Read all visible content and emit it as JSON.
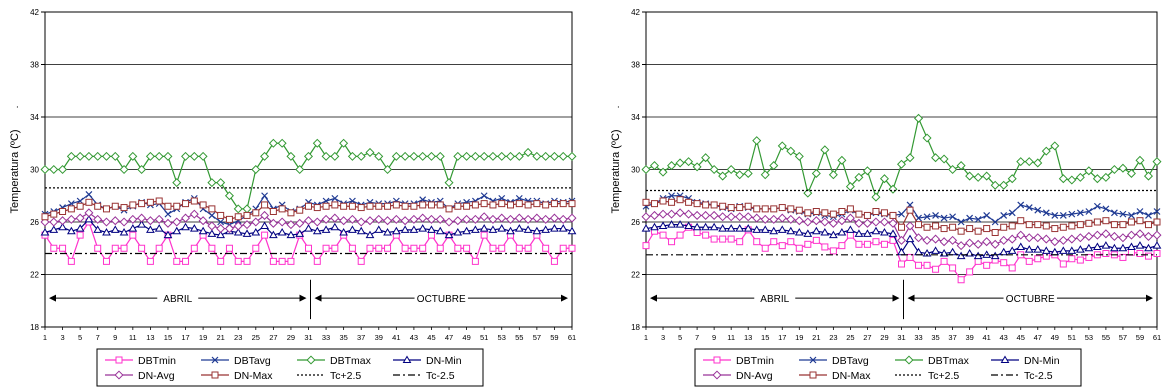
{
  "chart_data": [
    {
      "type": "line",
      "ylabel": "Temperatura (ºC)",
      "ylabel_prefix": ".",
      "ylim": [
        18,
        42
      ],
      "yticks": [
        18,
        22,
        26,
        30,
        34,
        38,
        42
      ],
      "xlim": [
        1,
        61
      ],
      "xticks": [
        1,
        3,
        5,
        7,
        9,
        11,
        13,
        15,
        17,
        19,
        21,
        23,
        25,
        27,
        29,
        31,
        33,
        35,
        37,
        39,
        41,
        43,
        45,
        47,
        49,
        51,
        53,
        55,
        57,
        59,
        61
      ],
      "grid": "horizontal",
      "legend_position": "bottom",
      "period_labels": [
        "ABRIL",
        "OCTUBRE"
      ],
      "divider_x": 31,
      "series": [
        {
          "name": "DBTmin",
          "color": "#ff33cc",
          "marker": "square",
          "values": [
            25,
            24,
            24,
            23,
            25,
            26,
            24,
            23,
            24,
            24,
            25,
            24,
            23,
            24,
            25,
            23,
            23,
            24,
            25,
            24,
            23,
            24,
            23,
            23,
            24,
            25,
            23,
            23,
            23,
            25,
            24,
            23,
            24,
            24,
            25,
            24,
            23,
            24,
            24,
            24,
            25,
            24,
            24,
            24,
            25,
            24,
            25,
            24,
            24,
            23,
            25,
            24,
            24,
            25,
            24,
            24,
            25,
            24,
            23,
            24,
            24
          ]
        },
        {
          "name": "DBTavg",
          "color": "#1f3a93",
          "marker": "x",
          "values": [
            26.6,
            26.8,
            27.1,
            27.4,
            27.6,
            28.1,
            27.3,
            27.0,
            27.2,
            26.9,
            27.2,
            27.5,
            27.3,
            27.4,
            26.6,
            27.0,
            27.5,
            27.8,
            27.0,
            26.5,
            26.0,
            25.8,
            26.1,
            26.5,
            27.0,
            28.0,
            27.0,
            27.3,
            26.8,
            27.0,
            27.5,
            27.3,
            27.6,
            27.8,
            27.4,
            27.6,
            27.3,
            27.5,
            27.4,
            27.4,
            27.6,
            27.4,
            27.4,
            27.7,
            27.5,
            27.6,
            27.0,
            27.4,
            27.5,
            27.6,
            28.0,
            27.6,
            27.8,
            27.5,
            27.8,
            27.6,
            27.6,
            27.4,
            27.6,
            27.5,
            27.6
          ]
        },
        {
          "name": "DBTmax",
          "color": "#339933",
          "marker": "diamond",
          "values": [
            30,
            30,
            30,
            31,
            31,
            31,
            31,
            31,
            31,
            30,
            31,
            30,
            31,
            31,
            31,
            29,
            31,
            31,
            31,
            29,
            29,
            28,
            27,
            27,
            30,
            31,
            32,
            32,
            31,
            30,
            31,
            32,
            31,
            31,
            32,
            31,
            31,
            31.3,
            31,
            30,
            31,
            31,
            31,
            31,
            31,
            31,
            29,
            31,
            31,
            31,
            31,
            31,
            31,
            31,
            31,
            31.3,
            31,
            31,
            31,
            31,
            31
          ]
        },
        {
          "name": "DN-Min",
          "color": "#000080",
          "marker": "triangle",
          "values": [
            25.2,
            25.4,
            25.6,
            25.3,
            25.5,
            26.2,
            25.4,
            25.2,
            25.4,
            25.2,
            25.5,
            25.8,
            25.4,
            25.5,
            25.0,
            25.3,
            25.6,
            25.5,
            25.3,
            25.1,
            25.0,
            25.3,
            25.2,
            25.1,
            25.2,
            25.7,
            25.0,
            25.2,
            25.0,
            25.1,
            25.5,
            25.3,
            25.4,
            25.6,
            25.2,
            25.4,
            25.3,
            25.0,
            25.4,
            25.2,
            25.3,
            25.4,
            25.4,
            25.5,
            25.4,
            25.3,
            25.0,
            25.2,
            25.3,
            25.4,
            25.5,
            25.4,
            25.5,
            25.3,
            25.5,
            25.4,
            25.3,
            25.4,
            25.5,
            25.5,
            25.3
          ]
        },
        {
          "name": "DN-Avg",
          "color": "#993399",
          "marker": "diamond",
          "values": [
            26.0,
            26.0,
            26.1,
            26.2,
            26.3,
            26.7,
            26.2,
            26.0,
            26.1,
            26.0,
            26.2,
            26.3,
            26.1,
            26.2,
            25.9,
            26.0,
            26.3,
            26.6,
            26.1,
            25.7,
            25.5,
            25.5,
            25.7,
            25.8,
            26.0,
            26.5,
            25.9,
            26.0,
            25.8,
            25.9,
            26.1,
            26.0,
            26.2,
            26.3,
            26.1,
            26.2,
            26.0,
            26.1,
            26.2,
            26.1,
            26.2,
            26.1,
            26.2,
            26.3,
            26.2,
            26.2,
            26.0,
            26.1,
            26.2,
            26.2,
            26.4,
            26.2,
            26.3,
            26.2,
            26.3,
            26.2,
            26.3,
            26.2,
            26.3,
            26.2,
            26.3
          ]
        },
        {
          "name": "DN-Max",
          "color": "#993333",
          "marker": "square",
          "values": [
            26.4,
            26.6,
            26.8,
            27.0,
            27.2,
            27.5,
            27.2,
            27.0,
            27.2,
            27.1,
            27.3,
            27.4,
            27.5,
            27.6,
            27.2,
            27.2,
            27.4,
            27.6,
            27.3,
            27.0,
            26.5,
            26.2,
            26.4,
            26.5,
            26.7,
            27.3,
            26.8,
            27.0,
            26.7,
            26.9,
            27.2,
            27.1,
            27.2,
            27.3,
            27.2,
            27.2,
            27.1,
            27.2,
            27.2,
            27.2,
            27.3,
            27.2,
            27.2,
            27.3,
            27.3,
            27.3,
            27.0,
            27.2,
            27.2,
            27.3,
            27.4,
            27.3,
            27.4,
            27.3,
            27.4,
            27.3,
            27.4,
            27.3,
            27.4,
            27.4,
            27.4
          ]
        },
        {
          "name": "Tc+2.5",
          "color": "#000000",
          "dash": "dot",
          "values_const": 28.6
        },
        {
          "name": "Tc-2.5",
          "color": "#000000",
          "dash": "dashdot",
          "values_const": 23.6
        }
      ]
    },
    {
      "type": "line",
      "ylabel": "Temperatura (ºC)",
      "ylabel_prefix": ".",
      "ylim": [
        18,
        42
      ],
      "yticks": [
        18,
        22,
        26,
        30,
        34,
        38,
        42
      ],
      "xlim": [
        1,
        61
      ],
      "xticks": [
        1,
        3,
        5,
        7,
        9,
        11,
        13,
        15,
        17,
        19,
        21,
        23,
        25,
        27,
        29,
        31,
        33,
        35,
        37,
        39,
        41,
        43,
        45,
        47,
        49,
        51,
        53,
        55,
        57,
        59,
        61
      ],
      "grid": "horizontal",
      "legend_position": "bottom",
      "period_labels": [
        "ABRIL",
        "OCTUBRE"
      ],
      "divider_x": 31,
      "series": [
        {
          "name": "DBTmin",
          "color": "#ff33cc",
          "marker": "square",
          "values": [
            24.2,
            25.3,
            25.0,
            24.5,
            25.0,
            25.6,
            25.2,
            25.0,
            24.7,
            24.7,
            24.7,
            24.5,
            25.4,
            24.5,
            24.0,
            24.5,
            24.2,
            24.5,
            24.0,
            24.3,
            24.6,
            24.1,
            23.8,
            24.2,
            25.0,
            24.3,
            24.3,
            24.5,
            24.3,
            24.6,
            22.8,
            23.3,
            22.7,
            22.7,
            22.4,
            23.0,
            22.5,
            21.6,
            22.2,
            23.0,
            22.7,
            23.1,
            22.9,
            22.5,
            23.5,
            23.0,
            23.2,
            23.4,
            23.5,
            22.8,
            23.2,
            23.1,
            23.3,
            23.5,
            23.6,
            23.5,
            23.3,
            23.7,
            23.6,
            23.4,
            23.6
          ]
        },
        {
          "name": "DBTavg",
          "color": "#1f3a93",
          "marker": "x",
          "values": [
            27.2,
            27.4,
            27.8,
            28.0,
            28.0,
            27.8,
            27.5,
            27.4,
            27.3,
            27.1,
            27.0,
            27.2,
            27.1,
            27.0,
            27.0,
            27.0,
            27.1,
            26.9,
            26.8,
            26.6,
            26.7,
            26.5,
            26.4,
            26.6,
            26.9,
            26.6,
            26.5,
            26.7,
            26.6,
            26.5,
            26.6,
            27.3,
            26.3,
            26.4,
            26.5,
            26.3,
            26.4,
            26.0,
            26.3,
            26.2,
            26.5,
            26.0,
            26.5,
            26.7,
            27.3,
            27.1,
            26.9,
            26.7,
            26.5,
            26.5,
            26.6,
            26.7,
            26.8,
            27.2,
            27.0,
            26.7,
            26.6,
            26.5,
            26.8,
            26.5,
            26.8
          ]
        },
        {
          "name": "DBTmax",
          "color": "#339933",
          "marker": "diamond",
          "values": [
            30.0,
            30.3,
            29.8,
            30.3,
            30.5,
            30.6,
            30.2,
            30.9,
            30.0,
            29.5,
            30.0,
            29.6,
            29.7,
            32.2,
            29.6,
            30.3,
            31.8,
            31.4,
            31.0,
            28.2,
            29.7,
            31.5,
            29.6,
            30.7,
            28.7,
            29.4,
            29.9,
            27.9,
            29.3,
            28.5,
            30.4,
            30.9,
            33.9,
            32.4,
            30.9,
            30.8,
            30.0,
            30.3,
            29.5,
            29.4,
            29.5,
            28.8,
            28.8,
            29.3,
            30.6,
            30.6,
            30.5,
            31.4,
            31.8,
            29.3,
            29.2,
            29.4,
            29.9,
            29.3,
            29.4,
            30.0,
            30.1,
            29.7,
            30.7,
            29.5,
            30.6
          ]
        },
        {
          "name": "DN-Min",
          "color": "#000080",
          "marker": "triangle",
          "values": [
            25.5,
            25.6,
            25.7,
            25.8,
            25.8,
            25.7,
            25.6,
            25.6,
            25.6,
            25.5,
            25.5,
            25.5,
            25.5,
            25.4,
            25.4,
            25.3,
            25.4,
            25.3,
            25.2,
            25.1,
            25.3,
            25.2,
            25.0,
            25.2,
            25.4,
            25.1,
            25.1,
            25.3,
            25.2,
            25.1,
            23.7,
            24.7,
            23.7,
            23.6,
            23.8,
            23.6,
            23.7,
            23.4,
            23.6,
            23.4,
            23.5,
            23.4,
            23.7,
            23.8,
            24.1,
            23.9,
            23.9,
            23.8,
            23.7,
            23.8,
            23.8,
            23.9,
            24.0,
            24.1,
            24.2,
            24.0,
            24.0,
            24.1,
            24.2,
            24.0,
            24.2
          ]
        },
        {
          "name": "DN-Avg",
          "color": "#993399",
          "marker": "diamond",
          "values": [
            26.4,
            26.5,
            26.6,
            26.6,
            26.7,
            26.6,
            26.5,
            26.5,
            26.5,
            26.4,
            26.4,
            26.4,
            26.4,
            26.3,
            26.2,
            26.2,
            26.3,
            26.2,
            26.1,
            26.0,
            26.1,
            26.0,
            25.9,
            26.1,
            26.3,
            25.9,
            25.9,
            26.0,
            26.0,
            25.9,
            24.6,
            25.7,
            24.8,
            24.6,
            24.7,
            24.5,
            24.6,
            24.2,
            24.4,
            24.3,
            24.5,
            24.3,
            24.6,
            24.7,
            25.0,
            24.8,
            24.8,
            24.7,
            24.5,
            24.6,
            24.7,
            24.8,
            24.9,
            25.0,
            25.1,
            24.9,
            24.8,
            25.0,
            25.1,
            24.9,
            25.0
          ]
        },
        {
          "name": "DN-Max",
          "color": "#993333",
          "marker": "square",
          "values": [
            27.5,
            27.4,
            27.6,
            27.5,
            27.7,
            27.5,
            27.4,
            27.3,
            27.3,
            27.2,
            27.1,
            27.1,
            27.2,
            27.0,
            27.0,
            27.0,
            27.1,
            27.0,
            26.9,
            26.7,
            26.8,
            26.7,
            26.6,
            26.8,
            27.0,
            26.6,
            26.5,
            26.8,
            26.7,
            26.5,
            25.6,
            26.9,
            25.8,
            25.6,
            25.7,
            25.5,
            25.6,
            25.3,
            25.5,
            25.3,
            25.5,
            25.2,
            25.6,
            25.7,
            26.1,
            25.8,
            25.8,
            25.7,
            25.5,
            25.6,
            25.7,
            25.8,
            25.9,
            26.0,
            26.1,
            25.8,
            25.8,
            26.0,
            26.1,
            25.8,
            26.0
          ]
        },
        {
          "name": "Tc+2.5",
          "color": "#000000",
          "dash": "dot",
          "values_const": 28.4
        },
        {
          "name": "Tc-2.5",
          "color": "#000000",
          "dash": "dashdot",
          "values_const": 23.5
        }
      ]
    }
  ]
}
